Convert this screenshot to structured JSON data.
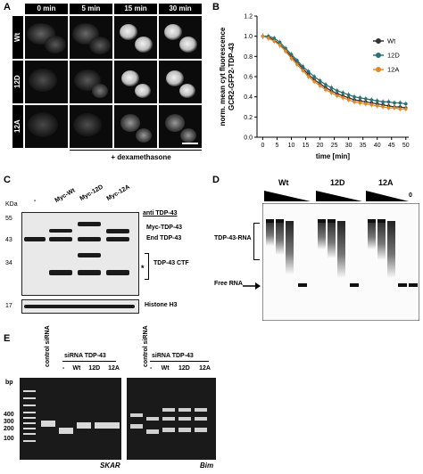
{
  "panelA": {
    "label": "A",
    "columns": [
      "0 min",
      "5 min",
      "15 min",
      "30 min"
    ],
    "rows": [
      "Wt",
      "12D",
      "12A"
    ],
    "treatment": "+ dexamethasone"
  },
  "panelB": {
    "label": "B",
    "colors": {
      "Wt": "#333333",
      "12D": "#2e6f73",
      "12A": "#e08a2b"
    }
  },
  "chart_data": {
    "type": "line",
    "xlabel": "time [min]",
    "ylabel": "norm. mean cyt fluorescence GCR2-GFP2-TDP-43",
    "ylabel_lines": [
      "norm. mean cyt fluorescence",
      "GCR2-GFP2-TDP-43"
    ],
    "xlim": [
      -2,
      51
    ],
    "ylim": [
      0,
      1.2
    ],
    "xticks": [
      0,
      5,
      10,
      15,
      20,
      25,
      30,
      35,
      40,
      45,
      50
    ],
    "yticks": [
      0.0,
      0.2,
      0.4,
      0.6,
      0.8,
      1.0,
      1.2
    ],
    "ytick_labels": [
      "0.0",
      "0.2",
      "0.4",
      "0.6",
      "0.8",
      "1.0",
      "1.2"
    ],
    "x": [
      0,
      2,
      4,
      6,
      8,
      10,
      12,
      14,
      16,
      18,
      20,
      22,
      24,
      26,
      28,
      30,
      32,
      34,
      36,
      38,
      40,
      42,
      44,
      46,
      48,
      50
    ],
    "legend": "right",
    "series": [
      {
        "name": "Wt",
        "values": [
          1.0,
          0.99,
          0.96,
          0.92,
          0.86,
          0.8,
          0.74,
          0.68,
          0.62,
          0.57,
          0.53,
          0.49,
          0.46,
          0.43,
          0.41,
          0.39,
          0.37,
          0.36,
          0.35,
          0.34,
          0.33,
          0.32,
          0.31,
          0.3,
          0.3,
          0.29
        ]
      },
      {
        "name": "12D",
        "values": [
          1.0,
          1.0,
          0.98,
          0.94,
          0.88,
          0.82,
          0.76,
          0.7,
          0.65,
          0.6,
          0.56,
          0.52,
          0.49,
          0.46,
          0.44,
          0.42,
          0.4,
          0.39,
          0.38,
          0.37,
          0.36,
          0.35,
          0.35,
          0.34,
          0.34,
          0.33
        ]
      },
      {
        "name": "12A",
        "values": [
          1.0,
          0.98,
          0.95,
          0.91,
          0.85,
          0.78,
          0.72,
          0.66,
          0.6,
          0.55,
          0.51,
          0.47,
          0.44,
          0.41,
          0.39,
          0.37,
          0.35,
          0.34,
          0.33,
          0.32,
          0.31,
          0.3,
          0.29,
          0.29,
          0.28,
          0.28
        ]
      }
    ]
  },
  "panelC": {
    "label": "C",
    "kda": "KDa",
    "lanes": [
      "-",
      "Myc-Wt",
      "Myc-12D",
      "Myc-12A"
    ],
    "markers": [
      "55",
      "43",
      "34",
      "17"
    ],
    "antibody": "anti TDP-43",
    "bands": [
      "Myc-TDP-43",
      "End TDP-43",
      "TDP-43 CTF"
    ],
    "star": "*",
    "loading": "Histone H3"
  },
  "panelD": {
    "label": "D",
    "groups": [
      "Wt",
      "12D",
      "12A"
    ],
    "zero": "0",
    "complex": "TDP-43-RNA",
    "free": "Free RNA"
  },
  "panelE": {
    "label": "E",
    "bp": "bp",
    "markers": [
      "400",
      "300",
      "200",
      "100"
    ],
    "lanes_left": [
      "control siRNA",
      "siRNA TDP-43"
    ],
    "lanes_left_sub": [
      "-",
      "Wt",
      "12D",
      "12A"
    ],
    "lanes_right": [
      "control siRNA",
      "siRNA TDP-43"
    ],
    "lanes_right_sub": [
      "-",
      "Wt",
      "12D",
      "12A"
    ],
    "gene_left": "SKAR",
    "gene_right": "Bim"
  }
}
